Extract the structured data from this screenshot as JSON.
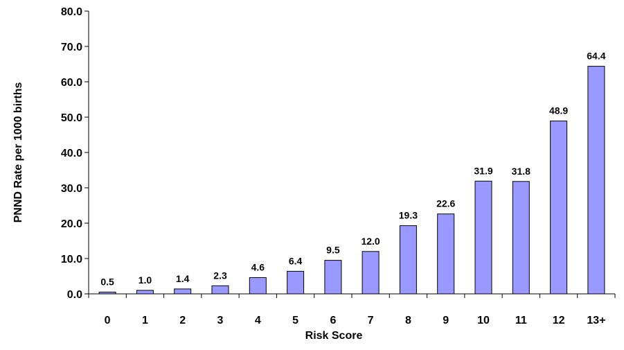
{
  "chart_data": {
    "type": "bar",
    "categories": [
      "0",
      "1",
      "2",
      "3",
      "4",
      "5",
      "6",
      "7",
      "8",
      "9",
      "10",
      "11",
      "12",
      "13+"
    ],
    "values": [
      0.5,
      1.0,
      1.4,
      2.3,
      4.6,
      6.4,
      9.5,
      12.0,
      19.3,
      22.6,
      31.9,
      31.8,
      48.9,
      64.4
    ],
    "value_labels": [
      "0.5",
      "1.0",
      "1.4",
      "2.3",
      "4.6",
      "6.4",
      "9.5",
      "12.0",
      "19.3",
      "22.6",
      "31.9",
      "31.8",
      "48.9",
      "64.4"
    ],
    "title": "",
    "xlabel": "Risk Score",
    "ylabel": "PNND Rate per 1000 births",
    "ylim": [
      0,
      80
    ],
    "yticks": [
      0,
      10,
      20,
      30,
      40,
      50,
      60,
      70,
      80
    ],
    "ytick_labels": [
      "0.0",
      "10.0",
      "20.0",
      "30.0",
      "40.0",
      "50.0",
      "60.0",
      "70.0",
      "80.0"
    ],
    "grid": false,
    "legend": "none",
    "colors": {
      "bar_fill": "#9999ff",
      "bar_stroke": "#000000",
      "axis": "#000000"
    }
  }
}
